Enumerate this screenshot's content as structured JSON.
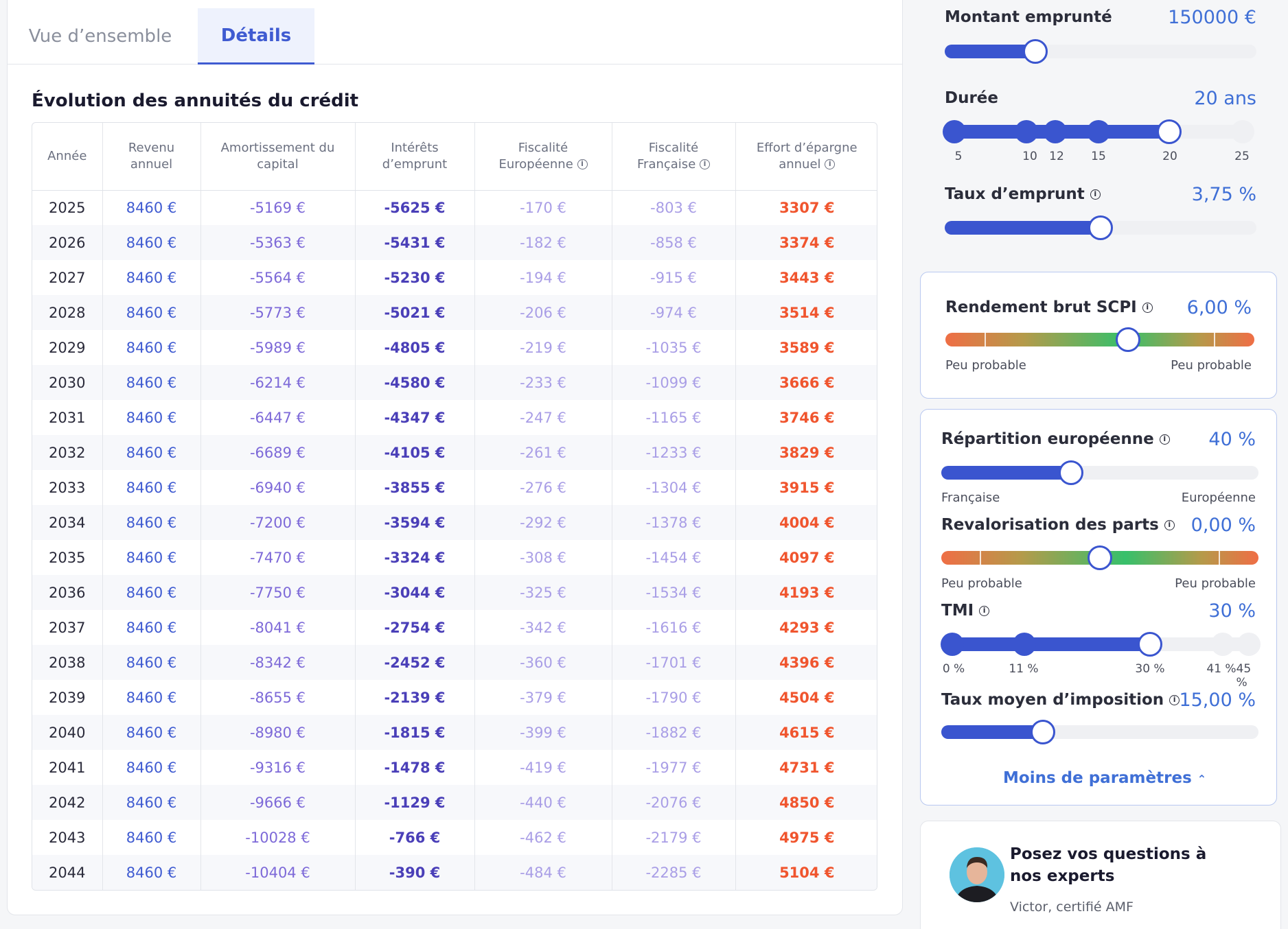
{
  "tabs": [
    {
      "label": "Vue d’ensemble",
      "active": false
    },
    {
      "label": "Détails",
      "active": true
    }
  ],
  "section_title": "Évolution des annuités du crédit",
  "table": {
    "headers": [
      "Année",
      "Revenu annuel",
      "Amortissement du capital",
      "Intérêts d’emprunt",
      "Fiscalité Européenne",
      "Fiscalité Française",
      "Effort d’épargne annuel"
    ],
    "rows": [
      [
        "2025",
        "8460 €",
        "-5169 €",
        "-5625 €",
        "-170 €",
        "-803 €",
        "3307 €"
      ],
      [
        "2026",
        "8460 €",
        "-5363 €",
        "-5431 €",
        "-182 €",
        "-858 €",
        "3374 €"
      ],
      [
        "2027",
        "8460 €",
        "-5564 €",
        "-5230 €",
        "-194 €",
        "-915 €",
        "3443 €"
      ],
      [
        "2028",
        "8460 €",
        "-5773 €",
        "-5021 €",
        "-206 €",
        "-974 €",
        "3514 €"
      ],
      [
        "2029",
        "8460 €",
        "-5989 €",
        "-4805 €",
        "-219 €",
        "-1035 €",
        "3589 €"
      ],
      [
        "2030",
        "8460 €",
        "-6214 €",
        "-4580 €",
        "-233 €",
        "-1099 €",
        "3666 €"
      ],
      [
        "2031",
        "8460 €",
        "-6447 €",
        "-4347 €",
        "-247 €",
        "-1165 €",
        "3746 €"
      ],
      [
        "2032",
        "8460 €",
        "-6689 €",
        "-4105 €",
        "-261 €",
        "-1233 €",
        "3829 €"
      ],
      [
        "2033",
        "8460 €",
        "-6940 €",
        "-3855 €",
        "-276 €",
        "-1304 €",
        "3915 €"
      ],
      [
        "2034",
        "8460 €",
        "-7200 €",
        "-3594 €",
        "-292 €",
        "-1378 €",
        "4004 €"
      ],
      [
        "2035",
        "8460 €",
        "-7470 €",
        "-3324 €",
        "-308 €",
        "-1454 €",
        "4097 €"
      ],
      [
        "2036",
        "8460 €",
        "-7750 €",
        "-3044 €",
        "-325 €",
        "-1534 €",
        "4193 €"
      ],
      [
        "2037",
        "8460 €",
        "-8041 €",
        "-2754 €",
        "-342 €",
        "-1616 €",
        "4293 €"
      ],
      [
        "2038",
        "8460 €",
        "-8342 €",
        "-2452 €",
        "-360 €",
        "-1701 €",
        "4396 €"
      ],
      [
        "2039",
        "8460 €",
        "-8655 €",
        "-2139 €",
        "-379 €",
        "-1790 €",
        "4504 €"
      ],
      [
        "2040",
        "8460 €",
        "-8980 €",
        "-1815 €",
        "-399 €",
        "-1882 €",
        "4615 €"
      ],
      [
        "2041",
        "8460 €",
        "-9316 €",
        "-1478 €",
        "-419 €",
        "-1977 €",
        "4731 €"
      ],
      [
        "2042",
        "8460 €",
        "-9666 €",
        "-1129 €",
        "-440 €",
        "-2076 €",
        "4850 €"
      ],
      [
        "2043",
        "8460 €",
        "-10028 €",
        "-766 €",
        "-462 €",
        "-2179 €",
        "4975 €"
      ],
      [
        "2044",
        "8460 €",
        "-10404 €",
        "-390 €",
        "-484 €",
        "-2285 €",
        "5104 €"
      ]
    ]
  },
  "params": {
    "montant": {
      "label": "Montant emprunté",
      "value": "150000 €",
      "fraction": 0.29
    },
    "duree": {
      "label": "Durée",
      "value": "20 ans",
      "ticks": [
        "5",
        "10",
        "12",
        "15",
        "20",
        "25"
      ],
      "selected": "20"
    },
    "taux": {
      "label": "Taux d’emprunt",
      "value": "3,75 %",
      "fraction": 0.5
    },
    "rendement": {
      "label": "Rendement brut SCPI",
      "value": "6,00 %",
      "fraction": 0.59,
      "left": "Peu probable",
      "right": "Peu probable"
    },
    "repartition": {
      "label": "Répartition européenne",
      "value": "40 %",
      "fraction": 0.41,
      "left": "Française",
      "right": "Européenne"
    },
    "revalorisation": {
      "label": "Revalorisation des parts",
      "value": "0,00 %",
      "fraction": 0.5,
      "left": "Peu probable",
      "right": "Peu probable"
    },
    "tmi": {
      "label": "TMI",
      "value": "30 %",
      "ticks": [
        "0 %",
        "11 %",
        "30 %",
        "41 %",
        "45 %"
      ],
      "selected": "30 %"
    },
    "taux_moyen": {
      "label": "Taux moyen d’imposition",
      "value": "15,00 %",
      "fraction": 0.32
    },
    "less_link": "Moins de paramètres"
  },
  "expert": {
    "title": "Posez vos questions à nos experts",
    "subtitle": "Victor, certifié AMF"
  },
  "colors": {
    "primary": "#3f5bd1",
    "accent": "#3f6fd6",
    "effort": "#f0552e"
  },
  "icons": [
    "info-icon",
    "chevron-up-icon"
  ]
}
